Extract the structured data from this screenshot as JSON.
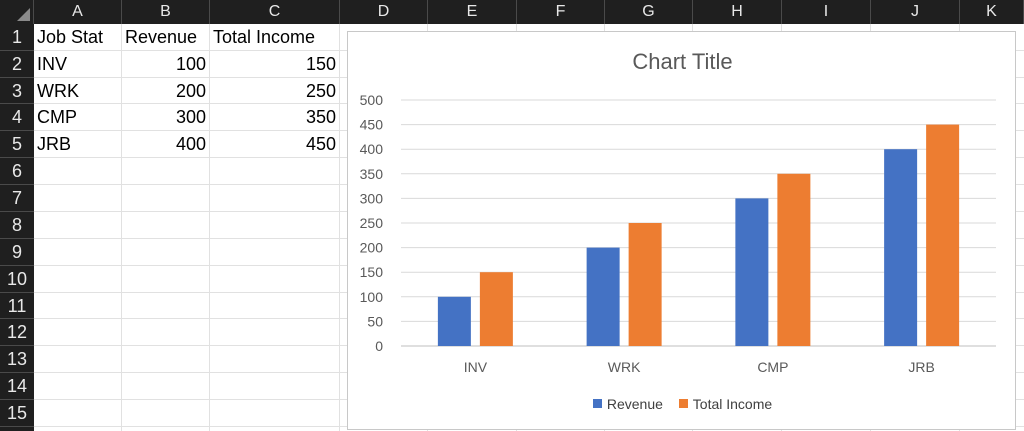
{
  "columns": [
    "A",
    "B",
    "C",
    "D",
    "E",
    "F",
    "G",
    "H",
    "I",
    "J",
    "K"
  ],
  "rows": [
    "1",
    "2",
    "3",
    "4",
    "5",
    "6",
    "7",
    "8",
    "9",
    "10",
    "11",
    "12",
    "13",
    "14",
    "15"
  ],
  "cells": {
    "A1": "Job Stat",
    "B1": "Revenue",
    "C1": "Total Income",
    "A2": "INV",
    "B2": "100",
    "C2": "150",
    "A3": "WRK",
    "B3": "200",
    "C3": "250",
    "A4": "CMP",
    "B4": "300",
    "C4": "350",
    "A5": "JRB",
    "B5": "400",
    "C5": "450"
  },
  "colors": {
    "revenue": "#4472c4",
    "total_income": "#ed7d31",
    "header_bg": "#1f1f1f"
  },
  "chart_data": {
    "type": "bar",
    "title": "Chart Title",
    "categories": [
      "INV",
      "WRK",
      "CMP",
      "JRB"
    ],
    "series": [
      {
        "name": "Revenue",
        "values": [
          100,
          200,
          300,
          400
        ],
        "color": "#4472c4"
      },
      {
        "name": "Total Income",
        "values": [
          150,
          250,
          350,
          450
        ],
        "color": "#ed7d31"
      }
    ],
    "ylim": [
      0,
      500
    ],
    "yticks": [
      "0",
      "50",
      "100",
      "150",
      "200",
      "250",
      "300",
      "350",
      "400",
      "450",
      "500"
    ],
    "grid": true,
    "legend": "bottom"
  }
}
